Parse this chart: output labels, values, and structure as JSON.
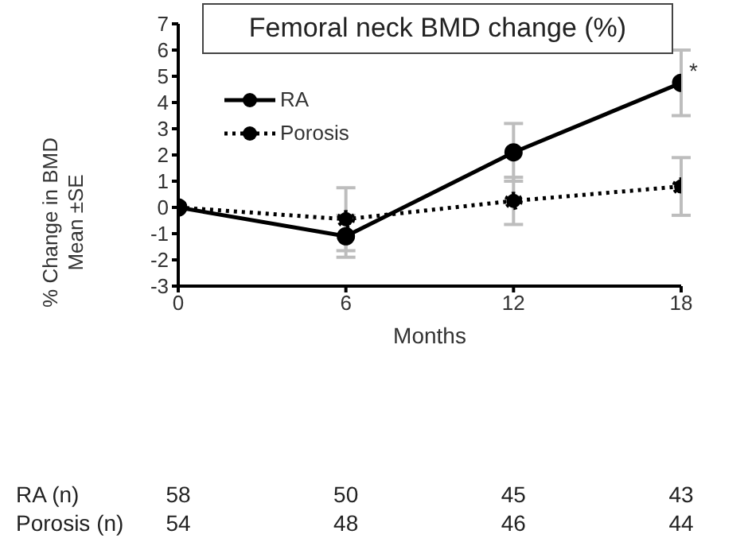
{
  "chart_data": {
    "type": "line",
    "title": "Femoral neck BMD change (%)",
    "xlabel": "Months",
    "ylabel": "% Change in BMD\nMean ±SE",
    "x": [
      0,
      6,
      12,
      18
    ],
    "xlim": [
      0,
      18
    ],
    "xticks": [
      0,
      6,
      12,
      18
    ],
    "ylim": [
      -3,
      7
    ],
    "yticks": [
      -3,
      -2,
      -1,
      0,
      1,
      2,
      3,
      4,
      5,
      6,
      7
    ],
    "legend": "top left",
    "marker": "circle",
    "series": [
      {
        "name": "RA",
        "color": "#000000",
        "line_style": "solid",
        "values": [
          0,
          -1.1,
          2.1,
          4.75
        ],
        "errors": [
          null,
          0.8,
          1.1,
          1.25
        ]
      },
      {
        "name": "Porosis",
        "color": "#000000",
        "line_style": "dotted",
        "values": [
          0,
          -0.45,
          0.25,
          0.8
        ],
        "errors": [
          null,
          1.2,
          0.9,
          1.1
        ]
      }
    ],
    "annotations": [
      {
        "text": "*",
        "x": 18,
        "y": 5.2
      },
      "RA (n)",
      "58",
      "50",
      "45",
      "43",
      "Porosis (n)",
      "54",
      "48",
      "46",
      "44"
    ]
  }
}
